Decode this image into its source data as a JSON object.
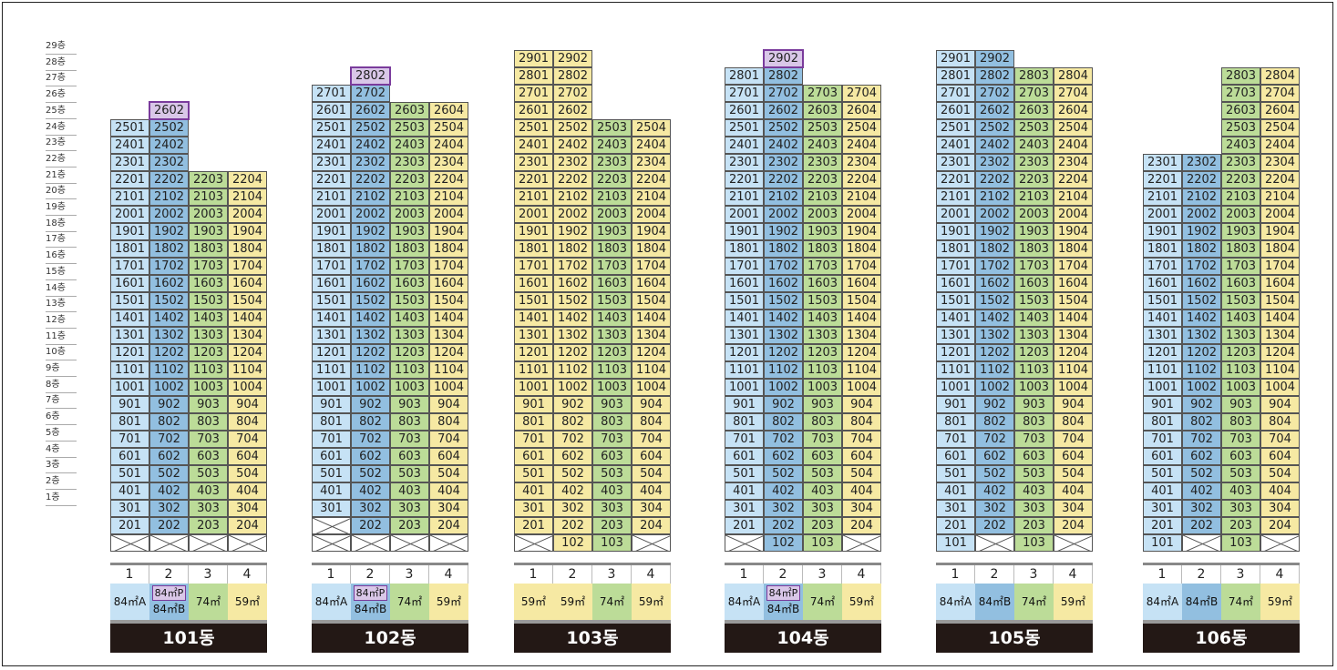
{
  "floor_labels": [
    "29층",
    "28층",
    "27층",
    "26층",
    "25층",
    "24층",
    "23층",
    "22층",
    "21층",
    "20층",
    "19층",
    "18층",
    "17층",
    "16층",
    "15층",
    "14층",
    "13층",
    "12층",
    "11층",
    "10층",
    "9층",
    "8층",
    "7층",
    "6층",
    "5층",
    "4층",
    "3층",
    "2층",
    "1층"
  ],
  "colors": {
    "type_A": "#c6e2f5",
    "type_B": "#92bfe0",
    "type_74": "#bcdc98",
    "type_59": "#f6e9a3",
    "highlight_border": "#7a3b9c",
    "dong_bar": "#231815"
  },
  "buildings": [
    {
      "name": "101동",
      "line_numbers": [
        "1",
        "2",
        "3",
        "4"
      ],
      "line_colors": [
        "A",
        "B",
        "G",
        "Y"
      ],
      "top_floor_by_line": [
        25,
        26,
        22,
        22
      ],
      "highlight_units": [
        "2602"
      ],
      "ground_units": [
        "",
        "",
        "",
        ""
      ],
      "types": [
        {
          "label": "84㎡A"
        },
        {
          "label": "84㎡P",
          "sub": "84㎡B"
        },
        {
          "label": "74㎡"
        },
        {
          "label": "59㎡"
        }
      ]
    },
    {
      "name": "102동",
      "line_numbers": [
        "1",
        "2",
        "3",
        "4"
      ],
      "line_colors": [
        "A",
        "B",
        "G",
        "Y"
      ],
      "top_floor_by_line": [
        27,
        28,
        26,
        26
      ],
      "highlight_units": [
        "2802"
      ],
      "missing_units": [
        "201"
      ],
      "ground_units": [
        "",
        "",
        "",
        ""
      ],
      "types": [
        {
          "label": "84㎡A"
        },
        {
          "label": "84㎡P",
          "sub": "84㎡B"
        },
        {
          "label": "74㎡"
        },
        {
          "label": "59㎡"
        }
      ]
    },
    {
      "name": "103동",
      "line_numbers": [
        "1",
        "2",
        "3",
        "4"
      ],
      "line_colors": [
        "Y",
        "Y",
        "G",
        "Y"
      ],
      "top_floor_by_line": [
        29,
        29,
        25,
        25
      ],
      "highlight_units": [],
      "ground_units": [
        "",
        "102",
        "103",
        ""
      ],
      "types": [
        {
          "label": "59㎡"
        },
        {
          "label": "59㎡"
        },
        {
          "label": "74㎡"
        },
        {
          "label": "59㎡"
        }
      ]
    },
    {
      "name": "104동",
      "line_numbers": [
        "1",
        "2",
        "3",
        "4"
      ],
      "line_colors": [
        "A",
        "B",
        "G",
        "Y"
      ],
      "top_floor_by_line": [
        28,
        29,
        27,
        27
      ],
      "highlight_units": [
        "2902"
      ],
      "ground_units": [
        "",
        "102",
        "103",
        ""
      ],
      "types": [
        {
          "label": "84㎡A"
        },
        {
          "label": "84㎡P",
          "sub": "84㎡B"
        },
        {
          "label": "74㎡"
        },
        {
          "label": "59㎡"
        }
      ]
    },
    {
      "name": "105동",
      "line_numbers": [
        "1",
        "2",
        "3",
        "4"
      ],
      "line_colors": [
        "A",
        "B",
        "G",
        "Y"
      ],
      "top_floor_by_line": [
        29,
        29,
        28,
        28
      ],
      "highlight_units": [],
      "ground_units": [
        "101",
        "",
        "103",
        ""
      ],
      "types": [
        {
          "label": "84㎡A"
        },
        {
          "label": "84㎡B"
        },
        {
          "label": "74㎡"
        },
        {
          "label": "59㎡"
        }
      ]
    },
    {
      "name": "106동",
      "line_numbers": [
        "1",
        "2",
        "3",
        "4"
      ],
      "line_colors": [
        "A",
        "B",
        "G",
        "Y"
      ],
      "top_floor_by_line": [
        23,
        23,
        28,
        28
      ],
      "highlight_units": [],
      "ground_units": [
        "101",
        "",
        "103",
        ""
      ],
      "types": [
        {
          "label": "84㎡A"
        },
        {
          "label": "84㎡B"
        },
        {
          "label": "74㎡"
        },
        {
          "label": "59㎡"
        }
      ]
    }
  ]
}
